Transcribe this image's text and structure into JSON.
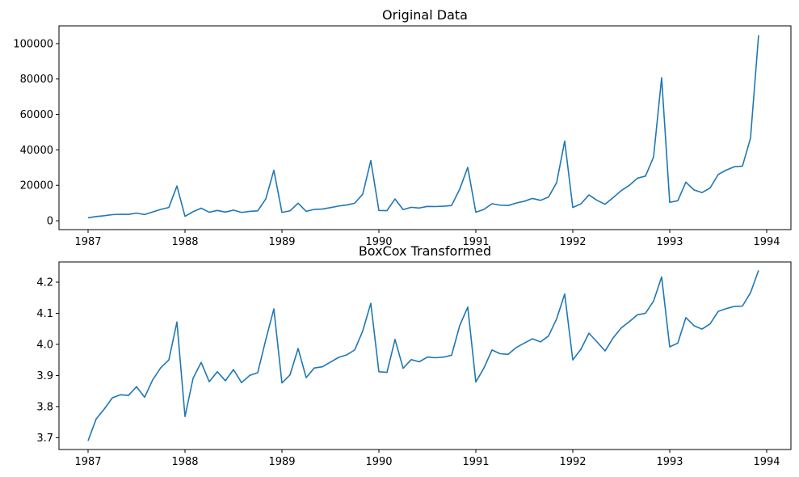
{
  "chart_data": [
    {
      "type": "line",
      "title": "Original Data",
      "xlabel": "",
      "ylabel": "",
      "x_ticks": [
        "1987",
        "1988",
        "1989",
        "1990",
        "1991",
        "1992",
        "1993",
        "1994"
      ],
      "y_ticks": [
        "0",
        "20000",
        "40000",
        "60000",
        "80000",
        "100000"
      ],
      "xlim": [
        1986.7,
        1994.25
      ],
      "ylim": [
        -5000,
        110000
      ],
      "grid": false,
      "line_color": "#1f77b4",
      "series": [
        {
          "x_start": 1987,
          "step": 0.08333,
          "values": [
            1660,
            2390,
            2840,
            3440,
            3670,
            3600,
            4300,
            3500,
            4980,
            6400,
            7500,
            19600,
            2500,
            5100,
            7100,
            4800,
            5800,
            4900,
            6000,
            4700,
            5300,
            5600,
            12300,
            28500,
            4700,
            5600,
            9900,
            5300,
            6400,
            6600,
            7400,
            8300,
            8900,
            9900,
            15000,
            34000,
            5800,
            5700,
            12300,
            6300,
            7600,
            7200,
            8100,
            8000,
            8200,
            8600,
            17800,
            30100,
            4800,
            6400,
            9600,
            8800,
            8600,
            10000,
            11000,
            12600,
            11500,
            13400,
            21500,
            45000,
            7500,
            9500,
            14600,
            11500,
            9300,
            13100,
            17000,
            20000,
            24000,
            25200,
            36000,
            80700,
            10400,
            11300,
            21800,
            17400,
            15900,
            18500,
            26100,
            28600,
            30500,
            30800,
            46600,
            104700
          ]
        }
      ]
    },
    {
      "type": "line",
      "title": "BoxCox Transformed",
      "xlabel": "",
      "ylabel": "",
      "x_ticks": [
        "1987",
        "1988",
        "1989",
        "1990",
        "1991",
        "1992",
        "1993",
        "1994"
      ],
      "y_ticks": [
        "3.7",
        "3.8",
        "3.9",
        "4.0",
        "4.1",
        "4.2"
      ],
      "xlim": [
        1986.7,
        1994.25
      ],
      "ylim": [
        3.662,
        4.265
      ],
      "grid": false,
      "line_color": "#1f77b4",
      "series": [
        {
          "x_start": 1987,
          "step": 0.08333,
          "values": [
            3.69,
            3.76,
            3.792,
            3.828,
            3.838,
            3.836,
            3.864,
            3.83,
            3.886,
            3.925,
            3.95,
            4.072,
            3.768,
            3.891,
            3.942,
            3.88,
            3.912,
            3.883,
            3.919,
            3.877,
            3.9,
            3.909,
            4.015,
            4.114,
            3.876,
            3.902,
            3.987,
            3.893,
            3.924,
            3.928,
            3.943,
            3.958,
            3.966,
            3.982,
            4.043,
            4.132,
            3.912,
            3.91,
            4.016,
            3.923,
            3.951,
            3.944,
            3.959,
            3.957,
            3.959,
            3.965,
            4.06,
            4.12,
            3.879,
            3.924,
            3.982,
            3.97,
            3.968,
            3.99,
            4.004,
            4.018,
            4.008,
            4.027,
            4.082,
            4.162,
            3.95,
            3.984,
            4.036,
            4.008,
            3.979,
            4.021,
            4.053,
            4.073,
            4.095,
            4.1,
            4.139,
            4.217,
            3.992,
            4.004,
            4.086,
            4.06,
            4.049,
            4.066,
            4.106,
            4.115,
            4.122,
            4.123,
            4.166,
            4.238
          ]
        }
      ]
    }
  ]
}
